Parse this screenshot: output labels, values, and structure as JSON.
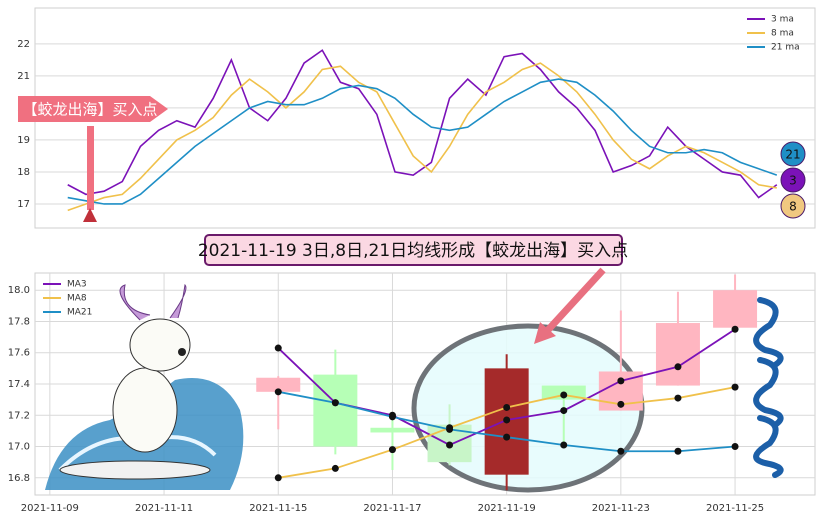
{
  "chart_data": [
    {
      "type": "line",
      "legend": "upper right",
      "grid": true,
      "ylim": [
        16.25,
        23.12
      ],
      "yticks": [
        17,
        18,
        19,
        20,
        21,
        22
      ],
      "xlim": [
        -1.8,
        41.1
      ],
      "series": [
        {
          "name": "3 ma",
          "color": "#7b12b8",
          "values": [
            17.6,
            17.3,
            17.4,
            17.7,
            18.8,
            19.3,
            19.6,
            19.4,
            20.3,
            21.5,
            20.0,
            19.6,
            20.3,
            21.4,
            21.8,
            20.8,
            20.6,
            19.8,
            18.0,
            17.9,
            18.3,
            20.3,
            20.9,
            20.4,
            21.6,
            21.7,
            21.2,
            20.5,
            20.0,
            19.3,
            18.0,
            18.2,
            18.5,
            19.4,
            18.8,
            18.4,
            18.0,
            17.9,
            17.2,
            17.6
          ]
        },
        {
          "name": "8 ma",
          "color": "#f0c14b",
          "values": [
            16.8,
            17.0,
            17.2,
            17.3,
            17.8,
            18.4,
            19.0,
            19.3,
            19.7,
            20.4,
            20.9,
            20.5,
            20.0,
            20.5,
            21.2,
            21.3,
            20.8,
            20.5,
            19.5,
            18.5,
            18.0,
            18.8,
            19.8,
            20.5,
            20.8,
            21.2,
            21.4,
            21.0,
            20.5,
            19.8,
            19.0,
            18.4,
            18.1,
            18.5,
            18.8,
            18.6,
            18.3,
            18.0,
            17.6,
            17.5
          ]
        },
        {
          "name": "21 ma",
          "color": "#1f8fc6",
          "values": [
            17.2,
            17.1,
            17.0,
            17.0,
            17.3,
            17.8,
            18.3,
            18.8,
            19.2,
            19.6,
            20.0,
            20.2,
            20.1,
            20.1,
            20.3,
            20.6,
            20.7,
            20.6,
            20.3,
            19.8,
            19.4,
            19.3,
            19.4,
            19.8,
            20.2,
            20.5,
            20.8,
            20.9,
            20.8,
            20.4,
            19.9,
            19.3,
            18.8,
            18.6,
            18.6,
            18.7,
            18.6,
            18.3,
            18.1,
            17.9
          ]
        }
      ]
    },
    {
      "type": "candlestick",
      "legend": "upper left",
      "grid": true,
      "ylim": [
        16.69,
        18.11
      ],
      "yticks": [
        16.8,
        {
          "value": 17,
          "label": "17.0"
        },
        17.2,
        17.4,
        17.6,
        17.8,
        {
          "value": 18,
          "label": "18.0"
        }
      ],
      "xlim": [
        -0.26,
        13.4
      ],
      "xticks": [
        {
          "value": 0,
          "label": "2021-11-09"
        },
        {
          "value": 2,
          "label": "2021-11-11"
        },
        {
          "value": 4,
          "label": "2021-11-15"
        },
        {
          "value": 6,
          "label": "2021-11-17"
        },
        {
          "value": 8,
          "label": "2021-11-19"
        },
        {
          "value": 10,
          "label": "2021-11-23"
        },
        {
          "value": 12,
          "label": "2021-11-25"
        }
      ],
      "x": [
        4,
        5,
        6,
        7,
        8,
        9,
        10,
        11,
        12
      ],
      "open": [
        17.35,
        17.46,
        17.12,
        17.14,
        16.82,
        17.39,
        17.23,
        17.39,
        17.76
      ],
      "high": [
        17.45,
        17.62,
        17.2,
        17.27,
        17.59,
        17.39,
        17.87,
        17.99,
        18.1
      ],
      "low": [
        17.11,
        16.95,
        16.85,
        16.88,
        16.72,
        17.01,
        17.23,
        17.39,
        17.76
      ],
      "close": [
        17.44,
        17.0,
        17.09,
        16.9,
        17.5,
        17.3,
        17.48,
        17.79,
        18.0
      ],
      "candle_colors": [
        "#ffb6c1",
        "#b6ffb6",
        "#b6ffb6",
        "#c8f5c8",
        "#a52a2a",
        "#b6ffb6",
        "#ffb6c1",
        "#ffb6c1",
        "#ffb6c1"
      ],
      "series": [
        {
          "name": "MA3",
          "color": "#7b12b8",
          "values": [
            17.63,
            17.28,
            17.2,
            17.01,
            17.17,
            17.23,
            17.42,
            17.51,
            17.75
          ]
        },
        {
          "name": "MA8",
          "color": "#f0c14b",
          "values": [
            16.8,
            16.86,
            16.98,
            17.12,
            17.25,
            17.33,
            17.27,
            17.31,
            17.38
          ]
        },
        {
          "name": "MA21",
          "color": "#1f8fc6",
          "values": [
            17.35,
            17.28,
            17.19,
            17.11,
            17.06,
            17.01,
            16.97,
            16.97,
            17.0
          ]
        }
      ]
    }
  ],
  "annotations": {
    "buy_point_label": "【蛟龙出海】买入点",
    "signal_banner": "2021-11-19 3日,8日,21日均线形成【蛟龙出海】买入点",
    "badges": [
      "21",
      "3",
      "8"
    ]
  }
}
